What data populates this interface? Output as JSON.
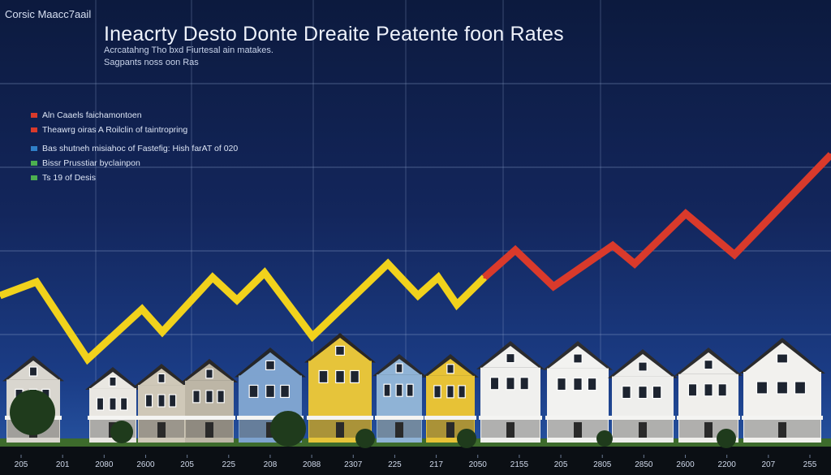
{
  "corner_label": "Corsic Maacc7aail",
  "title": "Ineacrty Desto Donte Dreaite Peatente foon Rates",
  "subtitles": [
    "Acrcatahng Tho bxd Fiurtesal ain matakes.",
    "Sagpants noss oon Ras"
  ],
  "legend": [
    {
      "label": "Aln Caaels faichamontoen",
      "color": "#d93a2b"
    },
    {
      "label": "Theawrg oiras A Roilclin of taintropring",
      "color": "#d93a2b"
    },
    {
      "label": "Bas shutneh misiahoc of Fastefig: Hish farAT of 020",
      "color": "#2f7fc8"
    },
    {
      "label": "Bissr Prusstiar byclainpon",
      "color": "#4caf50"
    },
    {
      "label": "Ts 19 of Desis",
      "color": "#4caf50"
    }
  ],
  "chart_data": {
    "type": "line",
    "title": "Ineacrty Desto Donte Dreaite Peatente foon Rates",
    "xlabel": "",
    "ylabel": "",
    "x_tick_labels": [
      "205",
      "201",
      "2080",
      "2600",
      "205",
      "225",
      "208",
      "2088",
      "2307",
      "225",
      "217",
      "2050",
      "2155",
      "205",
      "2805",
      "2850",
      "2600",
      "2200",
      "207",
      "255"
    ],
    "series": [
      {
        "color": "#f1d21c",
        "x": [
          0,
          45,
          108,
          175,
          200,
          262,
          292,
          326,
          385,
          478,
          515,
          540,
          563,
          597
        ],
        "y": [
          35,
          38,
          21,
          32,
          27,
          39,
          34,
          40,
          26,
          42,
          35,
          39,
          33,
          39
        ]
      },
      {
        "color": "#d93a2b",
        "x": [
          597,
          635,
          682,
          755,
          782,
          845,
          905,
          1024
        ],
        "y": [
          39,
          45,
          37,
          46,
          42,
          53,
          44,
          66
        ]
      }
    ],
    "xlim": [
      0,
      1024
    ],
    "ylim": [
      0,
      100
    ],
    "grid": true,
    "legend_position": "top-left"
  }
}
